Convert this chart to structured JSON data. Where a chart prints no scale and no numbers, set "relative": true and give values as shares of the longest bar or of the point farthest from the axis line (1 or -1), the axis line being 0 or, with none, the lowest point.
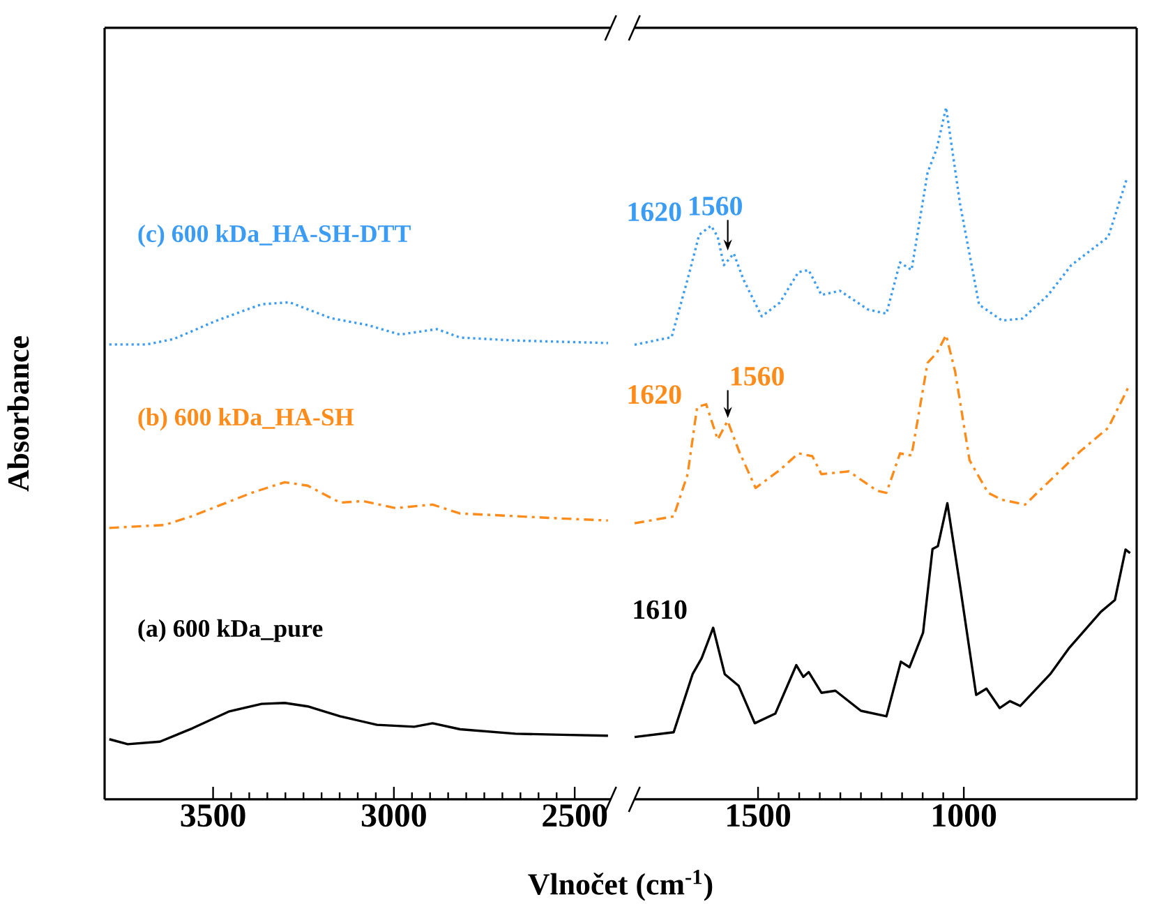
{
  "chart_data": [
    {
      "type": "line",
      "relative": true,
      "ylabel": "Absorbance",
      "xlim": [
        3800,
        2400
      ],
      "xticks": [
        3500,
        3000,
        2500
      ],
      "legend": false,
      "tick_labels": "x",
      "series": [
        {
          "name": "(c) 600 kDa_HA-SH-DTT",
          "color": "#3b9cf5",
          "line_style": "dotted",
          "x": [
            3787,
            3685,
            3609,
            3494,
            3366,
            3289,
            3174,
            3072,
            2983,
            2881,
            2817,
            2664,
            2408
          ],
          "values": [
            0.915,
            0.915,
            0.926,
            0.962,
            0.996,
            1.0,
            0.968,
            0.954,
            0.935,
            0.946,
            0.929,
            0.923,
            0.918
          ]
        },
        {
          "name": "(b) 600 kDa_HA-SH",
          "color": "#ff8c1a",
          "line_style": "dashdot",
          "x": [
            3787,
            3634,
            3557,
            3392,
            3302,
            3238,
            3149,
            3085,
            2996,
            2893,
            2817,
            2728,
            2536,
            2408
          ],
          "values": [
            0.546,
            0.552,
            0.57,
            0.617,
            0.638,
            0.631,
            0.597,
            0.6,
            0.586,
            0.593,
            0.575,
            0.572,
            0.565,
            0.561
          ]
        },
        {
          "name": "(a) 600 kDa_pure",
          "color": "#000000",
          "line_style": "solid",
          "x": [
            3787,
            3736,
            3647,
            3557,
            3455,
            3366,
            3302,
            3238,
            3149,
            3047,
            2944,
            2893,
            2817,
            2664,
            2536,
            2408
          ],
          "values": [
            0.121,
            0.111,
            0.116,
            0.143,
            0.177,
            0.192,
            0.194,
            0.187,
            0.167,
            0.15,
            0.146,
            0.153,
            0.141,
            0.132,
            0.13,
            0.128
          ]
        }
      ]
    },
    {
      "type": "line",
      "relative": true,
      "xlabel": "Vlnočet (cm$^{-1}$)",
      "xlim": [
        1800,
        580
      ],
      "xticks": [
        1500,
        1000
      ],
      "legend": false,
      "tick_labels": "x",
      "series": [
        {
          "color": "#3b9cf5",
          "line_style": "dotted",
          "x": [
            1800,
            1710,
            1671,
            1643,
            1614,
            1598,
            1583,
            1559,
            1536,
            1491,
            1447,
            1402,
            1377,
            1346,
            1301,
            1233,
            1188,
            1155,
            1127,
            1088,
            1066,
            1043,
            1009,
            963,
            907,
            857,
            795,
            739,
            649,
            604
          ],
          "values": [
            0.657,
            0.668,
            0.752,
            0.816,
            0.829,
            0.813,
            0.772,
            0.789,
            0.752,
            0.698,
            0.718,
            0.762,
            0.765,
            0.729,
            0.735,
            0.708,
            0.702,
            0.776,
            0.765,
            0.906,
            0.94,
            1.0,
            0.86,
            0.715,
            0.692,
            0.695,
            0.729,
            0.772,
            0.813,
            0.897
          ]
        },
        {
          "color": "#ff8c1a",
          "line_style": "dashdot",
          "x": [
            1800,
            1705,
            1671,
            1648,
            1626,
            1598,
            1574,
            1546,
            1506,
            1447,
            1402,
            1368,
            1346,
            1279,
            1211,
            1188,
            1155,
            1127,
            1088,
            1066,
            1043,
            1021,
            986,
            941,
            907,
            851,
            717,
            649,
            599
          ],
          "values": [
            0.399,
            0.409,
            0.47,
            0.567,
            0.571,
            0.52,
            0.547,
            0.503,
            0.45,
            0.476,
            0.5,
            0.496,
            0.47,
            0.474,
            0.446,
            0.443,
            0.5,
            0.497,
            0.631,
            0.645,
            0.671,
            0.618,
            0.49,
            0.443,
            0.433,
            0.426,
            0.503,
            0.537,
            0.597
          ]
        },
        {
          "color": "#000000",
          "line_style": "solid",
          "x": [
            1800,
            1705,
            1659,
            1637,
            1609,
            1581,
            1547,
            1508,
            1458,
            1407,
            1390,
            1377,
            1346,
            1312,
            1250,
            1188,
            1153,
            1132,
            1099,
            1076,
            1063,
            1040,
            1009,
            970,
            945,
            913,
            888,
            863,
            790,
            745,
            667,
            633,
            607,
            596
          ],
          "values": [
            0.09,
            0.097,
            0.181,
            0.204,
            0.248,
            0.181,
            0.164,
            0.11,
            0.124,
            0.194,
            0.177,
            0.184,
            0.154,
            0.157,
            0.128,
            0.12,
            0.199,
            0.191,
            0.241,
            0.362,
            0.366,
            0.428,
            0.308,
            0.151,
            0.16,
            0.132,
            0.142,
            0.135,
            0.181,
            0.218,
            0.271,
            0.288,
            0.361,
            0.356
          ]
        }
      ],
      "annotations": [
        {
          "text": "1620",
          "x": 1620,
          "y": 0.829
        },
        {
          "text": "1560",
          "x": 1560,
          "y": 0.789
        },
        {
          "text": "1620",
          "x": 1620,
          "y": 0.571
        },
        {
          "text": "1560",
          "x": 1560,
          "y": 0.547
        },
        {
          "text": "1610",
          "x": 1610,
          "y": 0.248
        }
      ]
    }
  ]
}
